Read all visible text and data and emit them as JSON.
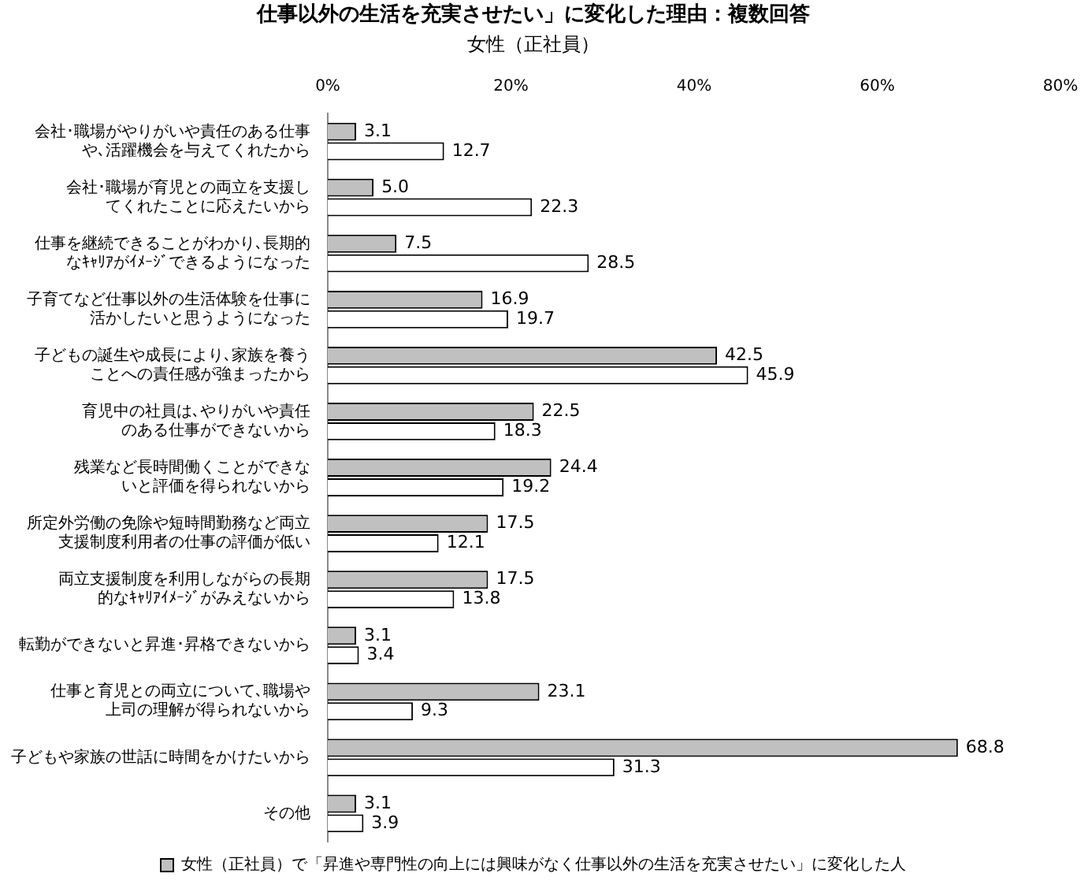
{
  "chart_data": {
    "type": "bar",
    "orientation": "horizontal",
    "title": "仕事以外の生活を充実させたい」に変化した理由：複数回答",
    "subtitle": "女性（正社員）",
    "categories": [
      "会社･職場がやりがいや責任のある仕事や､活躍機会を与えてくれたから",
      "会社･職場が育児との両立を支援してくれたことに応えたいから",
      "仕事を継続できることがわかり､長期的なｷｬﾘｱがｲﾒｰｼﾞできるようになった",
      "子育てなど仕事以外の生活体験を仕事に活かしたいと思うようになった",
      "子どもの誕生や成長により､家族を養うことへの責任感が強まったから",
      "育児中の社員は､やりがいや責任のある仕事ができないから",
      "残業など長時間働くことができないと評価を得られないから",
      "所定外労働の免除や短時間勤務など両立支援制度利用者の仕事の評価が低い",
      "両立支援制度を利用しながらの長期的なｷｬﾘｱｲﾒｰｼﾞがみえないから",
      "転勤ができないと昇進･昇格できないから",
      "仕事と育児との両立について､職場や上司の理解が得られないから",
      "子どもや家族の世話に時間をかけたいから",
      "その他"
    ],
    "series": [
      {
        "name": "女性（正社員）で「昇進や専門性の向上には興味がなく仕事以外の生活を充実させたい」に変化した人",
        "color": "#c0c0c0",
        "values": [
          3.1,
          5.0,
          7.5,
          16.9,
          42.5,
          22.5,
          24.4,
          17.5,
          17.5,
          3.1,
          23.1,
          68.8,
          3.1
        ],
        "value_labels": [
          "3.1",
          "5.0",
          "7.5",
          "16.9",
          "42.5",
          "22.5",
          "24.4",
          "17.5",
          "17.5",
          "3.1",
          "23.1",
          "68.8",
          "3.1"
        ]
      },
      {
        "color": "#ffffff",
        "values": [
          12.7,
          22.3,
          28.5,
          19.7,
          45.9,
          18.3,
          19.2,
          12.1,
          13.8,
          3.4,
          9.3,
          31.3,
          3.9
        ],
        "value_labels": [
          "12.7",
          "22.3",
          "28.5",
          "19.7",
          "45.9",
          "18.3",
          "19.2",
          "12.1",
          "13.8",
          "3.4",
          "9.3",
          "31.3",
          "3.9"
        ]
      }
    ],
    "xlim": [
      0,
      80
    ],
    "xticks": [
      {
        "value": 0,
        "label": "0%"
      },
      {
        "value": 20,
        "label": "20%"
      },
      {
        "value": 40,
        "label": "40%"
      },
      {
        "value": 60,
        "label": "60%"
      },
      {
        "value": 80,
        "label": "80%"
      }
    ],
    "grid": false,
    "legend": "bottom"
  }
}
